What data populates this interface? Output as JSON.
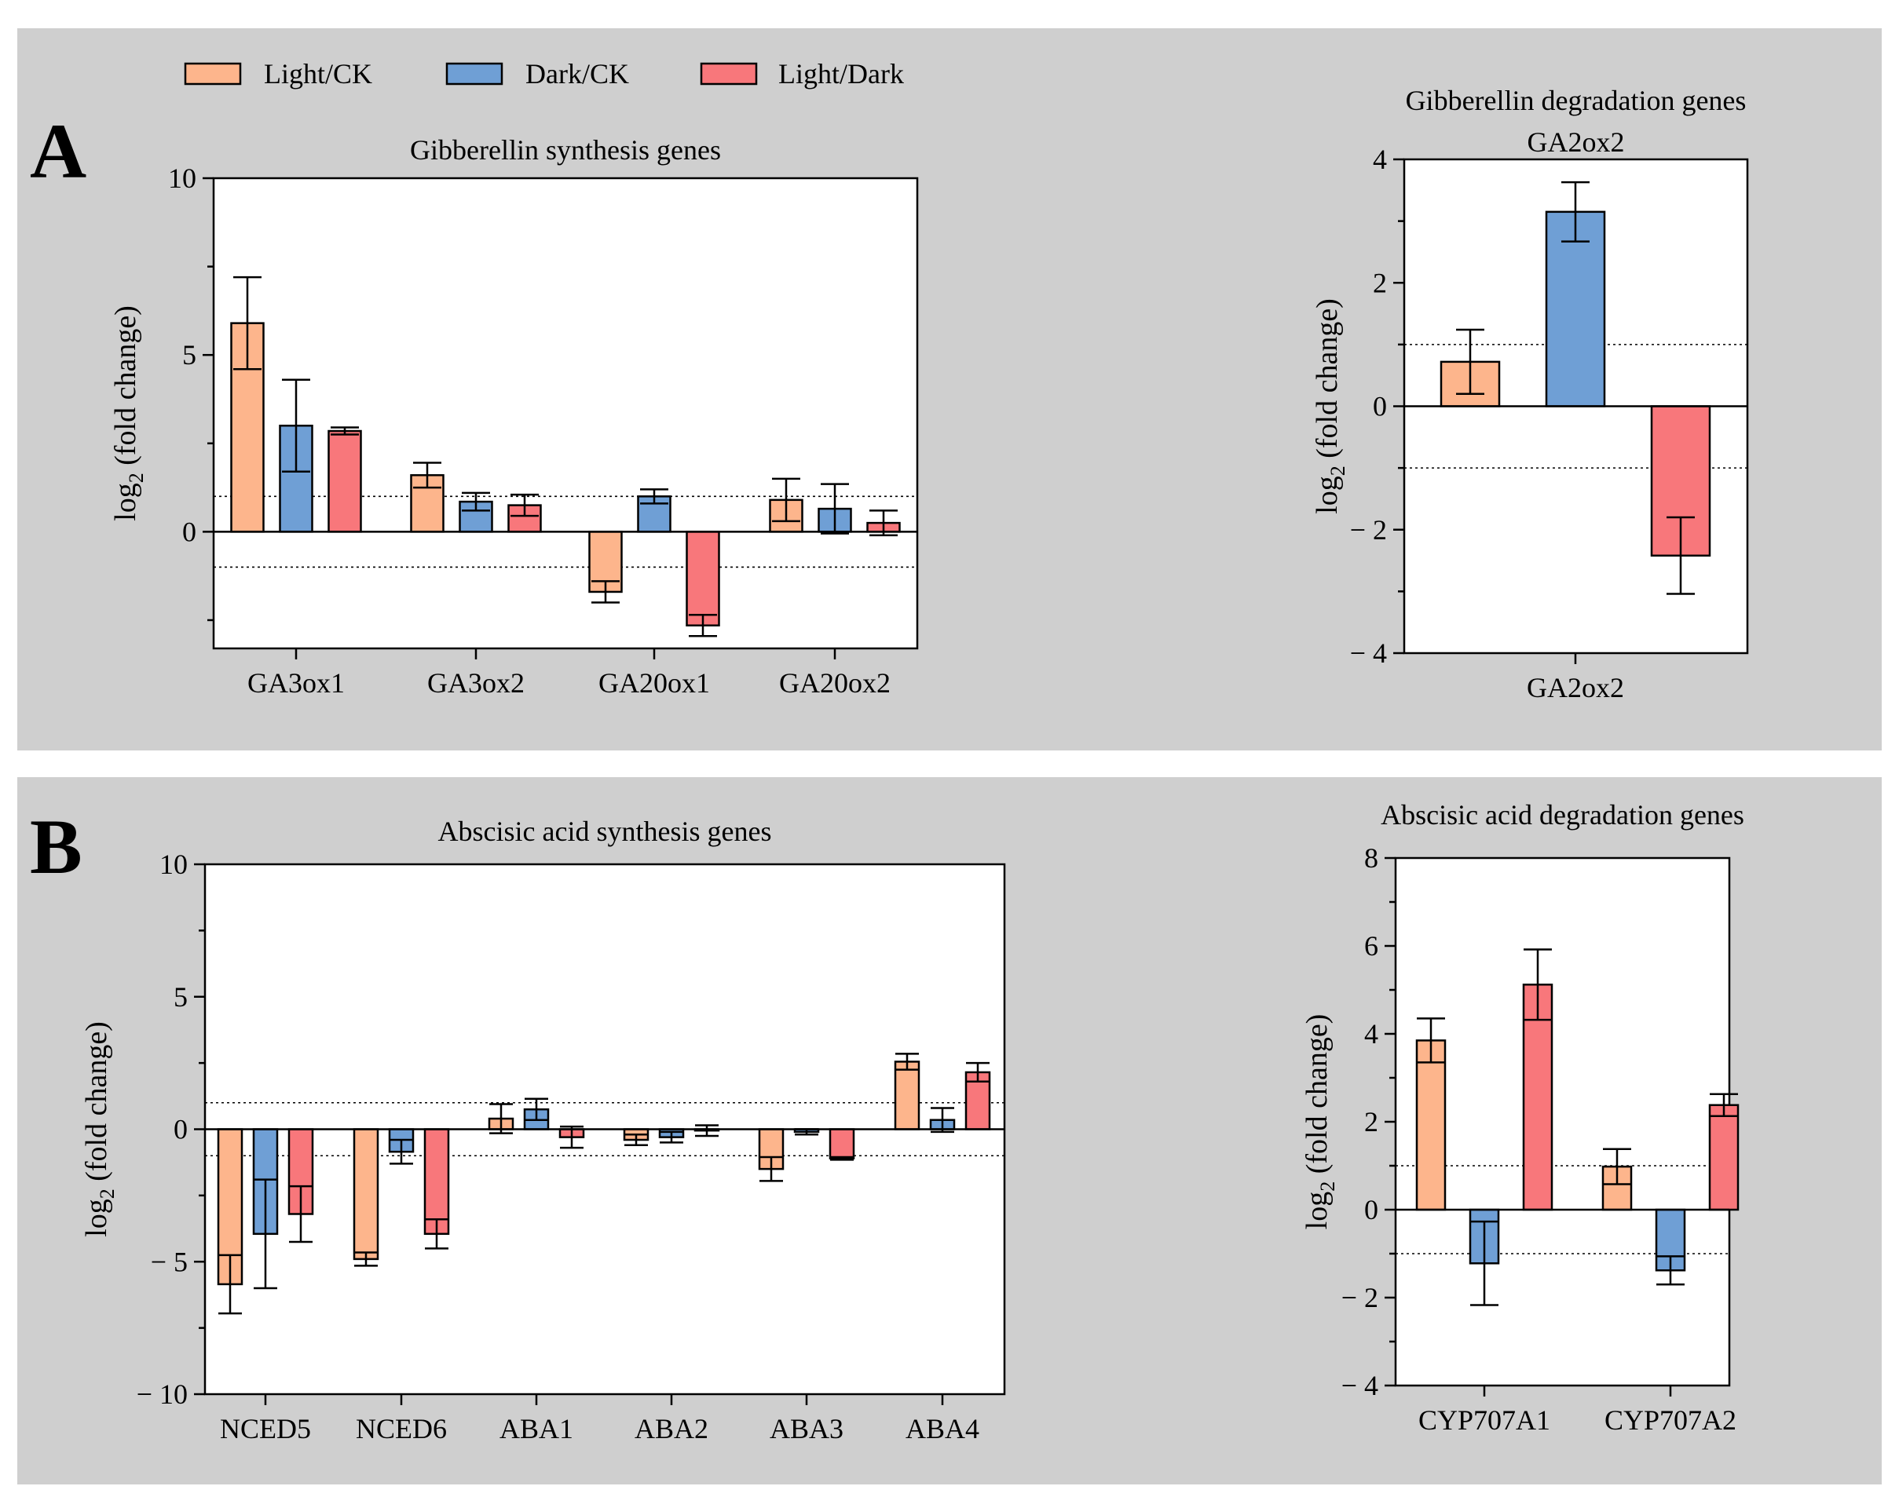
{
  "legend": [
    {
      "name": "Light/CK",
      "color": "#fdb58c"
    },
    {
      "name": "Dark/CK",
      "color": "#6f9fd5"
    },
    {
      "name": "Light/Dark",
      "color": "#f8777b"
    }
  ],
  "panels": [
    {
      "letter": "A"
    },
    {
      "letter": "B"
    }
  ],
  "chart_data": [
    {
      "id": "A-left",
      "type": "bar",
      "title": "Gibberellin synthesis genes",
      "subtitle": "",
      "ylabel": "log₂ (fold change)",
      "ylabel_base": "log",
      "ylabel_sub": "2",
      "ylabel_rest": " (fold change)",
      "ylim": [
        -3.3,
        10
      ],
      "major_ticks": [
        0,
        5,
        10
      ],
      "major_tick_labels": [
        "0",
        "5",
        "10"
      ],
      "minor_ticks": [
        -2.5,
        2.5,
        7.5
      ],
      "threshold_lines": [
        1,
        -1
      ],
      "categories": [
        "GA3ox1",
        "GA3ox2",
        "GA20ox1",
        "GA20ox2"
      ],
      "series": [
        {
          "name": "Light/CK",
          "values": [
            5.9,
            1.6,
            -1.7,
            0.9
          ],
          "errors": [
            1.3,
            0.35,
            0.3,
            0.6
          ]
        },
        {
          "name": "Dark/CK",
          "values": [
            3.0,
            0.85,
            1.0,
            0.65
          ],
          "errors": [
            1.3,
            0.25,
            0.2,
            0.7
          ]
        },
        {
          "name": "Light/Dark",
          "values": [
            2.85,
            0.75,
            -2.65,
            0.25
          ],
          "errors": [
            0.1,
            0.3,
            0.3,
            0.35
          ]
        }
      ]
    },
    {
      "id": "A-right",
      "type": "bar",
      "title": "Gibberellin degradation genes",
      "subtitle": "GA2ox2",
      "ylabel": "log₂ (fold change)",
      "ylabel_base": "log",
      "ylabel_sub": "2",
      "ylabel_rest": " (fold change)",
      "ylim": [
        -4,
        4
      ],
      "major_ticks": [
        -4,
        -2,
        0,
        2,
        4
      ],
      "major_tick_labels": [
        "− 4",
        "− 2",
        "0",
        "2",
        "4"
      ],
      "minor_ticks": [
        -3,
        -1,
        1,
        3
      ],
      "threshold_lines": [
        1,
        -1
      ],
      "categories": [
        "GA2ox2"
      ],
      "series": [
        {
          "name": "Light/CK",
          "values": [
            0.72
          ],
          "errors": [
            0.52
          ]
        },
        {
          "name": "Dark/CK",
          "values": [
            3.15
          ],
          "errors": [
            0.48
          ]
        },
        {
          "name": "Light/Dark",
          "values": [
            -2.42
          ],
          "errors": [
            0.62
          ]
        }
      ]
    },
    {
      "id": "B-left",
      "type": "bar",
      "title": "Abscisic acid synthesis genes",
      "subtitle": "",
      "ylabel": "log₂ (fold change)",
      "ylabel_base": "log",
      "ylabel_sub": "2",
      "ylabel_rest": " (fold change)",
      "ylim": [
        -10,
        10
      ],
      "major_ticks": [
        -10,
        -5,
        0,
        5,
        10
      ],
      "major_tick_labels": [
        "− 10",
        "− 5",
        "0",
        "5",
        "10"
      ],
      "minor_ticks": [
        -7.5,
        -2.5,
        2.5,
        7.5
      ],
      "threshold_lines": [
        1,
        -1
      ],
      "categories": [
        "NCED5",
        "NCED6",
        "ABA1",
        "ABA2",
        "ABA3",
        "ABA4"
      ],
      "series": [
        {
          "name": "Light/CK",
          "values": [
            -5.85,
            -4.9,
            0.4,
            -0.4,
            -1.5,
            2.55
          ],
          "errors": [
            1.1,
            0.25,
            0.55,
            0.2,
            0.45,
            0.3
          ]
        },
        {
          "name": "Dark/CK",
          "values": [
            -3.95,
            -0.85,
            0.75,
            -0.3,
            -0.1,
            0.35
          ],
          "errors": [
            2.05,
            0.45,
            0.4,
            0.2,
            0.1,
            0.45
          ]
        },
        {
          "name": "Light/Dark",
          "values": [
            -3.2,
            -3.95,
            -0.3,
            -0.05,
            -1.1,
            2.15
          ],
          "errors": [
            1.05,
            0.55,
            0.4,
            0.2,
            0.05,
            0.35
          ]
        }
      ]
    },
    {
      "id": "B-right",
      "type": "bar",
      "title": "Abscisic acid degradation genes",
      "subtitle": "",
      "ylabel": "log₂ (fold change)",
      "ylabel_base": "log",
      "ylabel_sub": "2",
      "ylabel_rest": " (fold change)",
      "ylim": [
        -4,
        8
      ],
      "major_ticks": [
        -4,
        -2,
        0,
        2,
        4,
        6,
        8
      ],
      "major_tick_labels": [
        "− 4",
        "− 2",
        "0",
        "2",
        "4",
        "6",
        "8"
      ],
      "minor_ticks": [
        -3,
        -1,
        1,
        3,
        5,
        7
      ],
      "threshold_lines": [
        1,
        -1
      ],
      "categories": [
        "CYP707A1",
        "CYP707A2"
      ],
      "series": [
        {
          "name": "Light/CK",
          "values": [
            3.85,
            0.98
          ],
          "errors": [
            0.5,
            0.4
          ]
        },
        {
          "name": "Dark/CK",
          "values": [
            -1.22,
            -1.38
          ],
          "errors": [
            0.95,
            0.32
          ]
        },
        {
          "name": "Light/Dark",
          "values": [
            5.12,
            2.38
          ],
          "errors": [
            0.8,
            0.25
          ]
        }
      ]
    }
  ]
}
